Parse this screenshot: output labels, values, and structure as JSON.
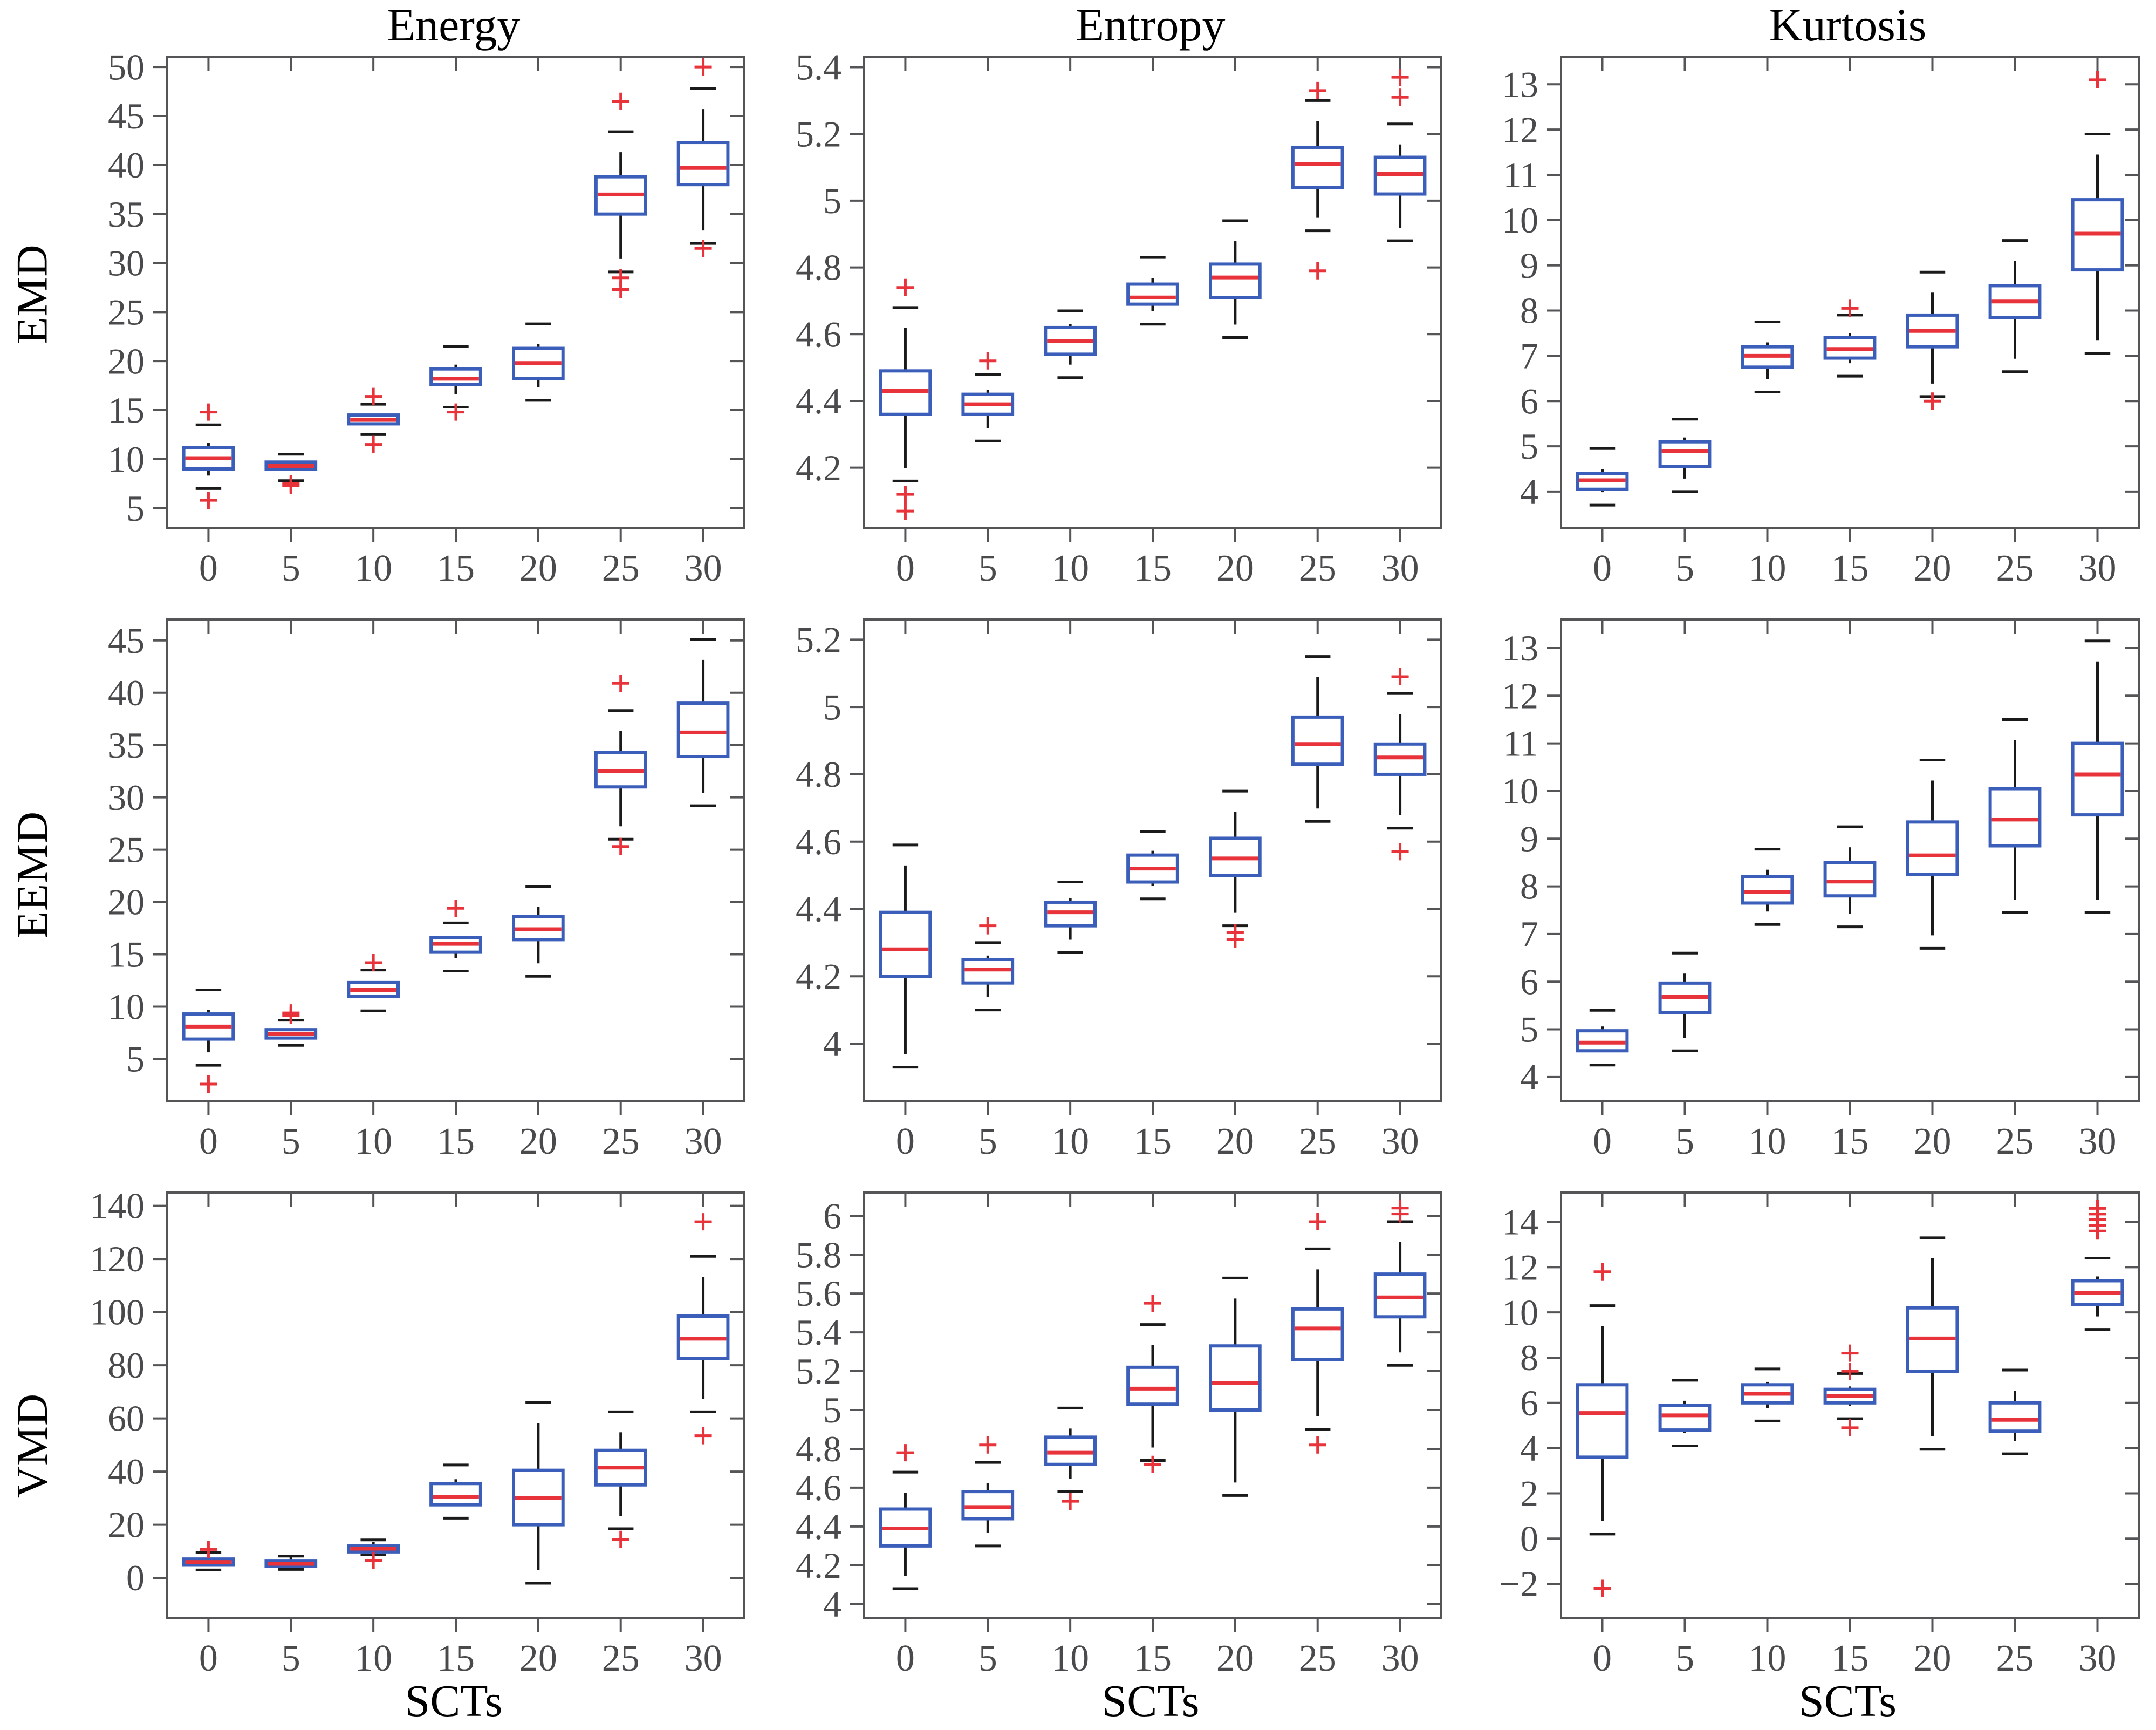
{
  "chart_data": {
    "type": "boxplot-grid",
    "layout": "3 rows x 3 columns, shared category axis",
    "xlabel": "SCTs",
    "categories": [
      0,
      5,
      10,
      15,
      20,
      25,
      30
    ],
    "row_labels": [
      "EMD",
      "EEMD",
      "VMD"
    ],
    "col_titles": [
      "Energy",
      "Entropy",
      "Kurtosis"
    ],
    "colors": {
      "box": "#3a5eb9",
      "median": "#e8333a",
      "whisker": "#1a1a1a",
      "outlier": "#e8333a",
      "axis": "#555558",
      "tick_label": "#4a4a4c",
      "text": "#000000",
      "background": "#ffffff"
    },
    "panels": [
      {
        "row": "EMD",
        "metric": "Energy",
        "ylim": [
          3,
          51
        ],
        "yticks": [
          5,
          10,
          15,
          20,
          25,
          30,
          35,
          40,
          45,
          50
        ],
        "boxes": [
          {
            "whisker_low": 7.0,
            "q1": 9.0,
            "median": 10.1,
            "q3": 11.2,
            "whisker_high": 13.5,
            "outliers": [
              14.8,
              5.8
            ]
          },
          {
            "whisker_low": 7.8,
            "q1": 9.0,
            "median": 9.3,
            "q3": 9.7,
            "whisker_high": 10.5,
            "outliers": [
              7.5,
              7.3
            ]
          },
          {
            "whisker_low": 12.5,
            "q1": 13.6,
            "median": 14.0,
            "q3": 14.5,
            "whisker_high": 15.6,
            "outliers": [
              16.4,
              11.5
            ]
          },
          {
            "whisker_low": 15.3,
            "q1": 17.6,
            "median": 18.2,
            "q3": 19.2,
            "whisker_high": 21.5,
            "outliers": [
              14.8
            ]
          },
          {
            "whisker_low": 16.0,
            "q1": 18.2,
            "median": 19.8,
            "q3": 21.3,
            "whisker_high": 23.8,
            "outliers": []
          },
          {
            "whisker_low": 29.1,
            "q1": 35.0,
            "median": 37.0,
            "q3": 38.8,
            "whisker_high": 43.4,
            "outliers": [
              46.5,
              28.5,
              27.3
            ]
          },
          {
            "whisker_low": 32.0,
            "q1": 38.0,
            "median": 39.7,
            "q3": 42.3,
            "whisker_high": 47.8,
            "outliers": [
              50.0,
              31.5
            ]
          }
        ]
      },
      {
        "row": "EMD",
        "metric": "Entropy",
        "ylim": [
          4.02,
          5.43
        ],
        "yticks": [
          4.2,
          4.4,
          4.6,
          4.8,
          5,
          5.2,
          5.4
        ],
        "boxes": [
          {
            "whisker_low": 4.16,
            "q1": 4.36,
            "median": 4.43,
            "q3": 4.49,
            "whisker_high": 4.68,
            "outliers": [
              4.74,
              4.12,
              4.07
            ]
          },
          {
            "whisker_low": 4.28,
            "q1": 4.36,
            "median": 4.39,
            "q3": 4.42,
            "whisker_high": 4.48,
            "outliers": [
              4.52
            ]
          },
          {
            "whisker_low": 4.47,
            "q1": 4.54,
            "median": 4.58,
            "q3": 4.62,
            "whisker_high": 4.67,
            "outliers": []
          },
          {
            "whisker_low": 4.63,
            "q1": 4.69,
            "median": 4.71,
            "q3": 4.75,
            "whisker_high": 4.83,
            "outliers": []
          },
          {
            "whisker_low": 4.59,
            "q1": 4.71,
            "median": 4.77,
            "q3": 4.81,
            "whisker_high": 4.94,
            "outliers": []
          },
          {
            "whisker_low": 4.91,
            "q1": 5.04,
            "median": 5.11,
            "q3": 5.16,
            "whisker_high": 5.3,
            "outliers": [
              5.33,
              4.79
            ]
          },
          {
            "whisker_low": 4.88,
            "q1": 5.02,
            "median": 5.08,
            "q3": 5.13,
            "whisker_high": 5.23,
            "outliers": [
              5.37,
              5.31
            ]
          }
        ]
      },
      {
        "row": "EMD",
        "metric": "Kurtosis",
        "ylim": [
          3.2,
          13.6
        ],
        "yticks": [
          4,
          5,
          6,
          7,
          8,
          9,
          10,
          11,
          12,
          13
        ],
        "boxes": [
          {
            "whisker_low": 3.7,
            "q1": 4.05,
            "median": 4.25,
            "q3": 4.4,
            "whisker_high": 4.95,
            "outliers": []
          },
          {
            "whisker_low": 4.0,
            "q1": 4.55,
            "median": 4.9,
            "q3": 5.1,
            "whisker_high": 5.6,
            "outliers": []
          },
          {
            "whisker_low": 6.2,
            "q1": 6.75,
            "median": 7.0,
            "q3": 7.2,
            "whisker_high": 7.75,
            "outliers": []
          },
          {
            "whisker_low": 6.55,
            "q1": 6.95,
            "median": 7.15,
            "q3": 7.4,
            "whisker_high": 7.9,
            "outliers": [
              8.05
            ]
          },
          {
            "whisker_low": 6.1,
            "q1": 7.2,
            "median": 7.55,
            "q3": 7.9,
            "whisker_high": 8.85,
            "outliers": [
              6.0
            ]
          },
          {
            "whisker_low": 6.65,
            "q1": 7.85,
            "median": 8.2,
            "q3": 8.55,
            "whisker_high": 9.55,
            "outliers": []
          },
          {
            "whisker_low": 7.05,
            "q1": 8.9,
            "median": 9.7,
            "q3": 10.45,
            "whisker_high": 11.9,
            "outliers": [
              13.1
            ]
          }
        ]
      },
      {
        "row": "EEMD",
        "metric": "Energy",
        "ylim": [
          1,
          47
        ],
        "yticks": [
          5,
          10,
          15,
          20,
          25,
          30,
          35,
          40,
          45
        ],
        "boxes": [
          {
            "whisker_low": 4.4,
            "q1": 6.9,
            "median": 8.1,
            "q3": 9.3,
            "whisker_high": 11.6,
            "outliers": [
              2.6
            ]
          },
          {
            "whisker_low": 6.3,
            "q1": 7.0,
            "median": 7.4,
            "q3": 7.8,
            "whisker_high": 8.7,
            "outliers": [
              9.4,
              9.15
            ]
          },
          {
            "whisker_low": 9.6,
            "q1": 11.0,
            "median": 11.6,
            "q3": 12.3,
            "whisker_high": 13.5,
            "outliers": [
              14.2
            ]
          },
          {
            "whisker_low": 13.4,
            "q1": 15.2,
            "median": 16.0,
            "q3": 16.6,
            "whisker_high": 18.0,
            "outliers": [
              19.4
            ]
          },
          {
            "whisker_low": 12.9,
            "q1": 16.4,
            "median": 17.4,
            "q3": 18.6,
            "whisker_high": 21.5,
            "outliers": []
          },
          {
            "whisker_low": 26.0,
            "q1": 31.0,
            "median": 32.5,
            "q3": 34.3,
            "whisker_high": 38.3,
            "outliers": [
              40.9,
              25.3
            ]
          },
          {
            "whisker_low": 29.2,
            "q1": 33.9,
            "median": 36.2,
            "q3": 39.0,
            "whisker_high": 45.1,
            "outliers": []
          }
        ]
      },
      {
        "row": "EEMD",
        "metric": "Entropy",
        "ylim": [
          3.83,
          5.26
        ],
        "yticks": [
          4,
          4.2,
          4.4,
          4.6,
          4.8,
          5,
          5.2
        ],
        "boxes": [
          {
            "whisker_low": 3.93,
            "q1": 4.2,
            "median": 4.28,
            "q3": 4.39,
            "whisker_high": 4.59,
            "outliers": []
          },
          {
            "whisker_low": 4.1,
            "q1": 4.18,
            "median": 4.22,
            "q3": 4.25,
            "whisker_high": 4.3,
            "outliers": [
              4.35
            ]
          },
          {
            "whisker_low": 4.27,
            "q1": 4.35,
            "median": 4.39,
            "q3": 4.42,
            "whisker_high": 4.48,
            "outliers": []
          },
          {
            "whisker_low": 4.43,
            "q1": 4.48,
            "median": 4.52,
            "q3": 4.56,
            "whisker_high": 4.63,
            "outliers": []
          },
          {
            "whisker_low": 4.35,
            "q1": 4.5,
            "median": 4.55,
            "q3": 4.61,
            "whisker_high": 4.75,
            "outliers": [
              4.33,
              4.31
            ]
          },
          {
            "whisker_low": 4.66,
            "q1": 4.83,
            "median": 4.89,
            "q3": 4.97,
            "whisker_high": 5.15,
            "outliers": []
          },
          {
            "whisker_low": 4.64,
            "q1": 4.8,
            "median": 4.85,
            "q3": 4.89,
            "whisker_high": 5.04,
            "outliers": [
              5.09,
              4.57
            ]
          }
        ]
      },
      {
        "row": "EEMD",
        "metric": "Kurtosis",
        "ylim": [
          3.5,
          13.6
        ],
        "yticks": [
          4,
          5,
          6,
          7,
          8,
          9,
          10,
          11,
          12,
          13
        ],
        "boxes": [
          {
            "whisker_low": 4.25,
            "q1": 4.55,
            "median": 4.72,
            "q3": 4.97,
            "whisker_high": 5.4,
            "outliers": []
          },
          {
            "whisker_low": 4.55,
            "q1": 5.35,
            "median": 5.68,
            "q3": 5.97,
            "whisker_high": 6.6,
            "outliers": []
          },
          {
            "whisker_low": 7.2,
            "q1": 7.65,
            "median": 7.88,
            "q3": 8.2,
            "whisker_high": 8.78,
            "outliers": []
          },
          {
            "whisker_low": 7.15,
            "q1": 7.8,
            "median": 8.1,
            "q3": 8.5,
            "whisker_high": 9.25,
            "outliers": []
          },
          {
            "whisker_low": 6.7,
            "q1": 8.25,
            "median": 8.65,
            "q3": 9.35,
            "whisker_high": 10.65,
            "outliers": []
          },
          {
            "whisker_low": 7.45,
            "q1": 8.85,
            "median": 9.4,
            "q3": 10.05,
            "whisker_high": 11.5,
            "outliers": []
          },
          {
            "whisker_low": 7.45,
            "q1": 9.5,
            "median": 10.35,
            "q3": 11.0,
            "whisker_high": 13.15,
            "outliers": []
          }
        ]
      },
      {
        "row": "VMD",
        "metric": "Energy",
        "ylim": [
          -15,
          145
        ],
        "yticks": [
          0,
          20,
          40,
          60,
          80,
          100,
          120,
          140
        ],
        "boxes": [
          {
            "whisker_low": 3.0,
            "q1": 4.8,
            "median": 6.0,
            "q3": 7.1,
            "whisker_high": 9.6,
            "outliers": [
              10.7
            ]
          },
          {
            "whisker_low": 3.2,
            "q1": 4.3,
            "median": 5.3,
            "q3": 6.3,
            "whisker_high": 8.2,
            "outliers": []
          },
          {
            "whisker_low": 8.7,
            "q1": 9.8,
            "median": 11.0,
            "q3": 12.0,
            "whisker_high": 14.3,
            "outliers": [
              6.6
            ]
          },
          {
            "whisker_low": 22.5,
            "q1": 27.5,
            "median": 30.5,
            "q3": 35.5,
            "whisker_high": 42.5,
            "outliers": []
          },
          {
            "whisker_low": -2.0,
            "q1": 20.0,
            "median": 30.0,
            "q3": 40.5,
            "whisker_high": 66.0,
            "outliers": []
          },
          {
            "whisker_low": 18.5,
            "q1": 35.0,
            "median": 41.5,
            "q3": 48.0,
            "whisker_high": 62.5,
            "outliers": [
              14.5
            ]
          },
          {
            "whisker_low": 62.5,
            "q1": 82.5,
            "median": 90.0,
            "q3": 98.5,
            "whisker_high": 121.0,
            "outliers": [
              134.0,
              53.5
            ]
          }
        ]
      },
      {
        "row": "VMD",
        "metric": "Entropy",
        "ylim": [
          3.93,
          6.12
        ],
        "yticks": [
          4,
          4.2,
          4.4,
          4.6,
          4.8,
          5,
          5.2,
          5.4,
          5.6,
          5.8,
          6
        ],
        "boxes": [
          {
            "whisker_low": 4.08,
            "q1": 4.3,
            "median": 4.39,
            "q3": 4.49,
            "whisker_high": 4.68,
            "outliers": [
              4.78
            ]
          },
          {
            "whisker_low": 4.3,
            "q1": 4.44,
            "median": 4.5,
            "q3": 4.58,
            "whisker_high": 4.73,
            "outliers": [
              4.82
            ]
          },
          {
            "whisker_low": 4.58,
            "q1": 4.72,
            "median": 4.78,
            "q3": 4.86,
            "whisker_high": 5.01,
            "outliers": [
              4.53
            ]
          },
          {
            "whisker_low": 4.74,
            "q1": 5.03,
            "median": 5.11,
            "q3": 5.22,
            "whisker_high": 5.44,
            "outliers": [
              5.55,
              4.72
            ]
          },
          {
            "whisker_low": 4.56,
            "q1": 5.0,
            "median": 5.14,
            "q3": 5.33,
            "whisker_high": 5.68,
            "outliers": []
          },
          {
            "whisker_low": 4.9,
            "q1": 5.26,
            "median": 5.42,
            "q3": 5.52,
            "whisker_high": 5.83,
            "outliers": [
              5.97,
              4.82
            ]
          },
          {
            "whisker_low": 5.23,
            "q1": 5.48,
            "median": 5.58,
            "q3": 5.7,
            "whisker_high": 5.97,
            "outliers": [
              6.04,
              6.01
            ]
          }
        ]
      },
      {
        "row": "VMD",
        "metric": "Kurtosis",
        "ylim": [
          -3.5,
          15.3
        ],
        "yticks": [
          -2,
          0,
          2,
          4,
          6,
          8,
          10,
          12,
          14
        ],
        "boxes": [
          {
            "whisker_low": 0.2,
            "q1": 3.6,
            "median": 5.55,
            "q3": 6.8,
            "whisker_high": 10.3,
            "outliers": [
              11.8,
              -2.2
            ]
          },
          {
            "whisker_low": 4.1,
            "q1": 4.8,
            "median": 5.45,
            "q3": 5.9,
            "whisker_high": 7.0,
            "outliers": []
          },
          {
            "whisker_low": 5.2,
            "q1": 6.0,
            "median": 6.4,
            "q3": 6.8,
            "whisker_high": 7.5,
            "outliers": []
          },
          {
            "whisker_low": 5.3,
            "q1": 6.0,
            "median": 6.3,
            "q3": 6.6,
            "whisker_high": 7.3,
            "outliers": [
              8.2,
              7.4,
              4.9
            ]
          },
          {
            "whisker_low": 3.95,
            "q1": 7.4,
            "median": 8.85,
            "q3": 10.2,
            "whisker_high": 13.3,
            "outliers": []
          },
          {
            "whisker_low": 3.75,
            "q1": 4.75,
            "median": 5.25,
            "q3": 6.0,
            "whisker_high": 7.45,
            "outliers": []
          },
          {
            "whisker_low": 9.25,
            "q1": 10.35,
            "median": 10.85,
            "q3": 11.4,
            "whisker_high": 12.4,
            "outliers": [
              14.6,
              14.35,
              14.1,
              13.85,
              13.6
            ]
          }
        ]
      }
    ]
  }
}
